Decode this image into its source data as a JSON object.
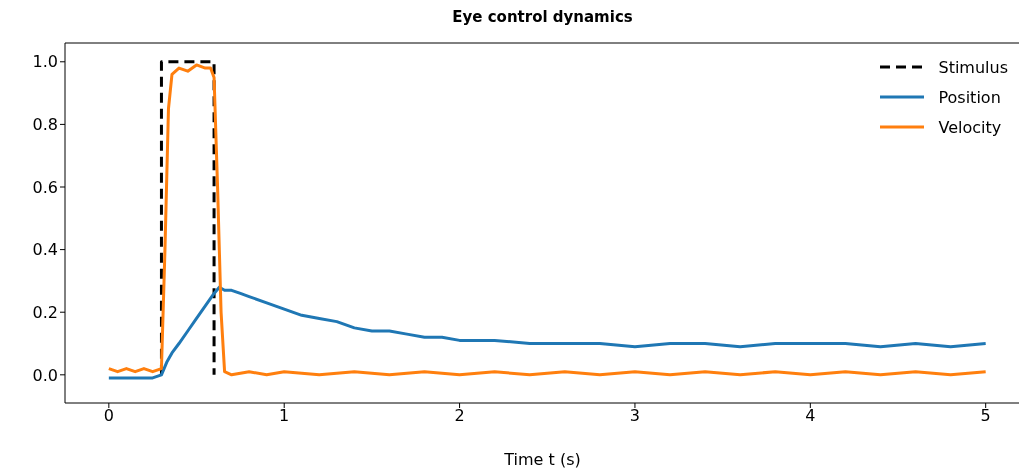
{
  "chart_data": {
    "type": "line",
    "title": "Eye control dynamics",
    "xlabel": "Time t (s)",
    "xlim": [
      -0.25,
      5.19
    ],
    "ylim": [
      -0.09,
      1.06
    ],
    "xticks": [
      0,
      1,
      2,
      3,
      4,
      5
    ],
    "yticks": [
      {
        "value": 0,
        "label": "0.0"
      },
      {
        "value": 0.2,
        "label": "0.2"
      },
      {
        "value": 0.4,
        "label": "0.4"
      },
      {
        "value": 0.6,
        "label": "0.6"
      },
      {
        "value": 0.8,
        "label": "0.8"
      },
      {
        "value": 1,
        "label": "1.0"
      }
    ],
    "legend": "top right",
    "marker": "none",
    "series": [
      {
        "name": "Stimulus",
        "color": "#000000",
        "line_style": "dashed",
        "x": [
          0.3,
          0.3,
          0.6,
          0.6
        ],
        "values": [
          0,
          1,
          1,
          0
        ]
      },
      {
        "name": "Position",
        "color": "#1f77b4",
        "line_style": "solid",
        "x": [
          0,
          0.05,
          0.1,
          0.15,
          0.2,
          0.25,
          0.3,
          0.33,
          0.36,
          0.4,
          0.45,
          0.5,
          0.55,
          0.6,
          0.63,
          0.66,
          0.7,
          0.75,
          0.8,
          0.9,
          1.0,
          1.1,
          1.2,
          1.3,
          1.4,
          1.5,
          1.6,
          1.7,
          1.8,
          1.9,
          2.0,
          2.2,
          2.4,
          2.6,
          2.8,
          3.0,
          3.2,
          3.4,
          3.6,
          3.8,
          4.0,
          4.2,
          4.4,
          4.6,
          4.8,
          5.0
        ],
        "values": [
          -0.01,
          -0.01,
          -0.01,
          -0.01,
          -0.01,
          -0.01,
          0.0,
          0.04,
          0.07,
          0.1,
          0.14,
          0.18,
          0.22,
          0.26,
          0.28,
          0.27,
          0.27,
          0.26,
          0.25,
          0.23,
          0.21,
          0.19,
          0.18,
          0.17,
          0.15,
          0.14,
          0.14,
          0.13,
          0.12,
          0.12,
          0.11,
          0.11,
          0.1,
          0.1,
          0.1,
          0.09,
          0.1,
          0.1,
          0.09,
          0.1,
          0.1,
          0.1,
          0.09,
          0.1,
          0.09,
          0.1
        ]
      },
      {
        "name": "Velocity",
        "color": "#ff7f0e",
        "line_style": "solid",
        "x": [
          0,
          0.05,
          0.1,
          0.15,
          0.2,
          0.25,
          0.3,
          0.32,
          0.34,
          0.36,
          0.4,
          0.45,
          0.5,
          0.55,
          0.58,
          0.6,
          0.62,
          0.64,
          0.66,
          0.7,
          0.8,
          0.9,
          1.0,
          1.2,
          1.4,
          1.6,
          1.8,
          2.0,
          2.2,
          2.4,
          2.6,
          2.8,
          3.0,
          3.2,
          3.4,
          3.6,
          3.8,
          4.0,
          4.2,
          4.4,
          4.6,
          4.8,
          5.0
        ],
        "values": [
          0.02,
          0.01,
          0.02,
          0.01,
          0.02,
          0.01,
          0.02,
          0.4,
          0.85,
          0.96,
          0.98,
          0.97,
          0.99,
          0.98,
          0.98,
          0.95,
          0.6,
          0.2,
          0.01,
          0,
          0.01,
          0,
          0.01,
          0,
          0.01,
          0,
          0.01,
          0,
          0.01,
          0,
          0.01,
          0,
          0.01,
          0,
          0.01,
          0,
          0.01,
          0,
          0.01,
          0,
          0.01,
          0,
          0.01
        ]
      }
    ]
  }
}
